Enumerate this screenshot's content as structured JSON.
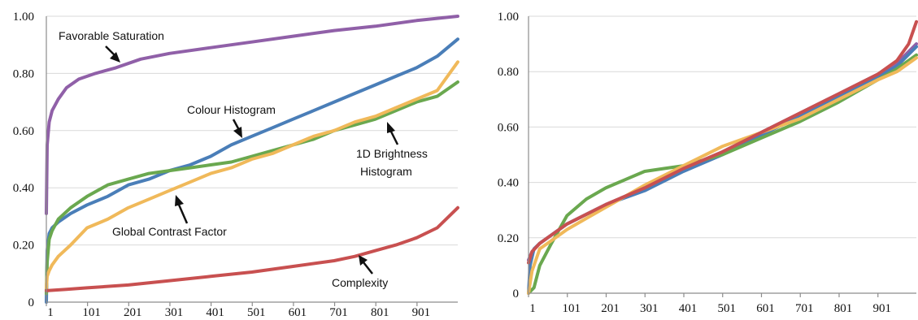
{
  "chart_data": [
    {
      "type": "line",
      "title": "",
      "xlabel": "",
      "ylabel": "",
      "ylim": [
        0,
        1
      ],
      "xlim": [
        1,
        1000
      ],
      "x_ticks": [
        "1",
        "101",
        "201",
        "301",
        "401",
        "501",
        "601",
        "701",
        "801",
        "901"
      ],
      "y_ticks": [
        "0",
        "0.20",
        "0.40",
        "0.60",
        "0.80",
        "1.00"
      ],
      "grid": true,
      "legend": "none",
      "series": [
        {
          "name": "Favorable Saturation",
          "color": "#9060a8",
          "x": [
            1,
            3,
            8,
            15,
            30,
            50,
            80,
            120,
            170,
            230,
            300,
            400,
            500,
            600,
            700,
            800,
            900,
            1000
          ],
          "y": [
            0.31,
            0.55,
            0.63,
            0.67,
            0.71,
            0.75,
            0.78,
            0.8,
            0.82,
            0.85,
            0.87,
            0.89,
            0.91,
            0.93,
            0.95,
            0.965,
            0.985,
            1.0
          ]
        },
        {
          "name": "Colour Histogram",
          "color": "#4a7eb8",
          "x": [
            1,
            3,
            8,
            15,
            30,
            60,
            100,
            150,
            200,
            250,
            300,
            350,
            400,
            450,
            500,
            550,
            600,
            650,
            700,
            750,
            800,
            850,
            900,
            950,
            1000
          ],
          "y": [
            0.0,
            0.18,
            0.24,
            0.26,
            0.28,
            0.31,
            0.34,
            0.37,
            0.41,
            0.43,
            0.46,
            0.48,
            0.51,
            0.55,
            0.58,
            0.61,
            0.64,
            0.67,
            0.7,
            0.73,
            0.76,
            0.79,
            0.82,
            0.86,
            0.92
          ]
        },
        {
          "name": "1D Brightness Histogram",
          "color": "#6aa84f",
          "x": [
            1,
            3,
            8,
            15,
            30,
            60,
            100,
            150,
            200,
            250,
            300,
            350,
            400,
            450,
            500,
            550,
            600,
            650,
            700,
            750,
            800,
            850,
            900,
            950,
            1000
          ],
          "y": [
            0.03,
            0.14,
            0.22,
            0.25,
            0.29,
            0.33,
            0.37,
            0.41,
            0.43,
            0.45,
            0.46,
            0.47,
            0.48,
            0.49,
            0.51,
            0.53,
            0.55,
            0.57,
            0.6,
            0.62,
            0.64,
            0.67,
            0.7,
            0.72,
            0.77
          ]
        },
        {
          "name": "Global Contrast Factor",
          "color": "#f0b95a",
          "x": [
            1,
            3,
            8,
            15,
            30,
            60,
            100,
            150,
            200,
            250,
            300,
            350,
            400,
            450,
            500,
            550,
            600,
            650,
            700,
            750,
            800,
            850,
            900,
            950,
            1000
          ],
          "y": [
            0.05,
            0.09,
            0.11,
            0.13,
            0.16,
            0.2,
            0.26,
            0.29,
            0.33,
            0.36,
            0.39,
            0.42,
            0.45,
            0.47,
            0.5,
            0.52,
            0.55,
            0.58,
            0.6,
            0.63,
            0.65,
            0.68,
            0.71,
            0.74,
            0.84
          ]
        },
        {
          "name": "Complexity",
          "color": "#c85050",
          "x": [
            1,
            50,
            100,
            200,
            300,
            400,
            500,
            600,
            700,
            750,
            800,
            850,
            900,
            950,
            1000
          ],
          "y": [
            0.04,
            0.045,
            0.05,
            0.06,
            0.075,
            0.09,
            0.105,
            0.125,
            0.145,
            0.16,
            0.18,
            0.2,
            0.225,
            0.26,
            0.33
          ]
        }
      ],
      "annotations": [
        {
          "text": "Favorable Saturation"
        },
        {
          "text": "Colour Histogram"
        },
        {
          "text": "1D Brightness"
        },
        {
          "text": "Histogram"
        },
        {
          "text": "Global Contrast Factor"
        },
        {
          "text": "Complexity"
        }
      ]
    },
    {
      "type": "line",
      "title": "",
      "xlabel": "",
      "ylabel": "",
      "ylim": [
        0,
        1
      ],
      "xlim": [
        1,
        1000
      ],
      "x_ticks": [
        "1",
        "101",
        "201",
        "301",
        "401",
        "501",
        "601",
        "701",
        "801",
        "901"
      ],
      "y_ticks": [
        "0",
        "0.20",
        "0.40",
        "0.60",
        "0.80",
        "1.00"
      ],
      "grid": true,
      "legend": "none",
      "series": [
        {
          "color": "#9060a8",
          "x": [
            1,
            10,
            30,
            60,
            100,
            200,
            300,
            400,
            500,
            600,
            700,
            800,
            900,
            950,
            1000
          ],
          "y": [
            0.12,
            0.15,
            0.18,
            0.21,
            0.25,
            0.32,
            0.38,
            0.45,
            0.51,
            0.58,
            0.65,
            0.72,
            0.79,
            0.83,
            0.9
          ]
        },
        {
          "color": "#4a7eb8",
          "x": [
            1,
            5,
            15,
            30,
            60,
            100,
            200,
            300,
            400,
            500,
            600,
            700,
            800,
            900,
            950,
            1000
          ],
          "y": [
            0.0,
            0.1,
            0.16,
            0.18,
            0.21,
            0.25,
            0.32,
            0.37,
            0.44,
            0.5,
            0.57,
            0.64,
            0.71,
            0.78,
            0.82,
            0.89
          ]
        },
        {
          "color": "#6aa84f",
          "x": [
            1,
            15,
            30,
            60,
            100,
            150,
            200,
            250,
            300,
            350,
            400,
            500,
            600,
            700,
            800,
            900,
            950,
            1000
          ],
          "y": [
            0.0,
            0.02,
            0.1,
            0.18,
            0.28,
            0.34,
            0.38,
            0.41,
            0.44,
            0.45,
            0.46,
            0.5,
            0.56,
            0.62,
            0.69,
            0.77,
            0.81,
            0.86
          ]
        },
        {
          "color": "#f0b95a",
          "x": [
            1,
            10,
            30,
            60,
            100,
            150,
            200,
            300,
            400,
            500,
            600,
            700,
            800,
            900,
            950,
            1000
          ],
          "y": [
            0.0,
            0.08,
            0.16,
            0.19,
            0.23,
            0.27,
            0.31,
            0.39,
            0.46,
            0.53,
            0.58,
            0.63,
            0.7,
            0.77,
            0.8,
            0.85
          ]
        },
        {
          "color": "#c85050",
          "x": [
            1,
            10,
            30,
            60,
            100,
            200,
            300,
            400,
            500,
            600,
            700,
            800,
            900,
            950,
            980,
            1000
          ],
          "y": [
            0.11,
            0.15,
            0.18,
            0.21,
            0.25,
            0.32,
            0.38,
            0.45,
            0.51,
            0.58,
            0.65,
            0.72,
            0.79,
            0.84,
            0.9,
            0.98
          ]
        }
      ]
    }
  ]
}
